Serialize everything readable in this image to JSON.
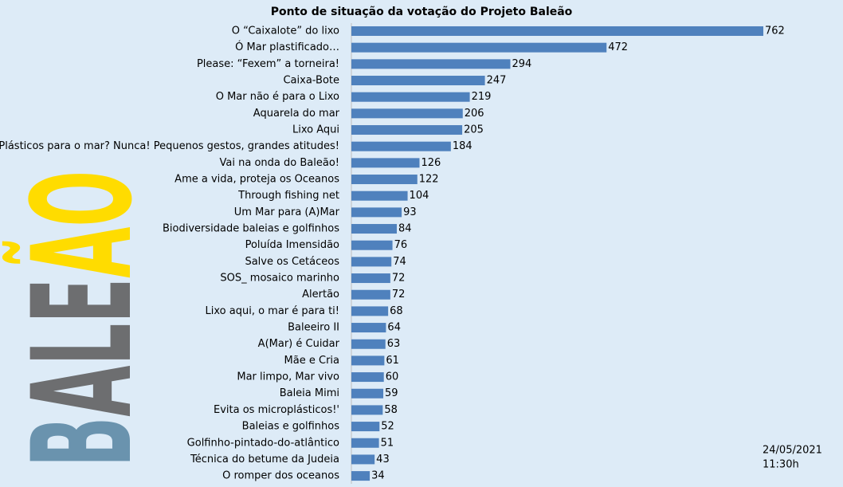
{
  "logo": [
    "B",
    "ALE",
    "ÃO"
  ],
  "chart_data": {
    "type": "bar",
    "orientation": "horizontal",
    "title": "Ponto de situação da votação do Projeto Baleão",
    "annotations": [
      "24/05/2021",
      "11:30h"
    ],
    "color": "#4f81bd",
    "categories": [
      "O “Caixalote” do lixo",
      "Ó Mar plastificado…",
      "Please: “Fexem” a torneira!",
      "Caixa-Bote",
      "O Mar não é para o Lixo",
      "Aquarela do mar",
      "Lixo Aqui",
      "Plásticos para o mar? Nunca! Pequenos gestos, grandes atitudes!",
      "Vai na onda do Baleão!",
      "Ame a vida, proteja os Oceanos",
      "Through fishing net",
      "Um Mar para (A)Mar",
      "Biodiversidade baleias e golfinhos",
      "Poluída Imensidão",
      "Salve os Cetáceos",
      "SOS_ mosaico marinho",
      "Alertão",
      "Lixo aqui, o mar é para ti!",
      "Baleeiro II",
      "A(Mar) é Cuidar",
      "Mãe e Cria",
      "Mar limpo, Mar vivo",
      "Baleia Mimi",
      "Evita os microplásticos!'",
      "Baleias e golfinhos",
      "Golfinho-pintado-do-atlântico",
      "Técnica do betume da Judeia",
      "O romper dos oceanos"
    ],
    "values": [
      762,
      472,
      294,
      247,
      219,
      206,
      205,
      184,
      126,
      122,
      104,
      93,
      84,
      76,
      74,
      72,
      72,
      68,
      64,
      63,
      61,
      60,
      59,
      58,
      52,
      51,
      43,
      34
    ]
  }
}
